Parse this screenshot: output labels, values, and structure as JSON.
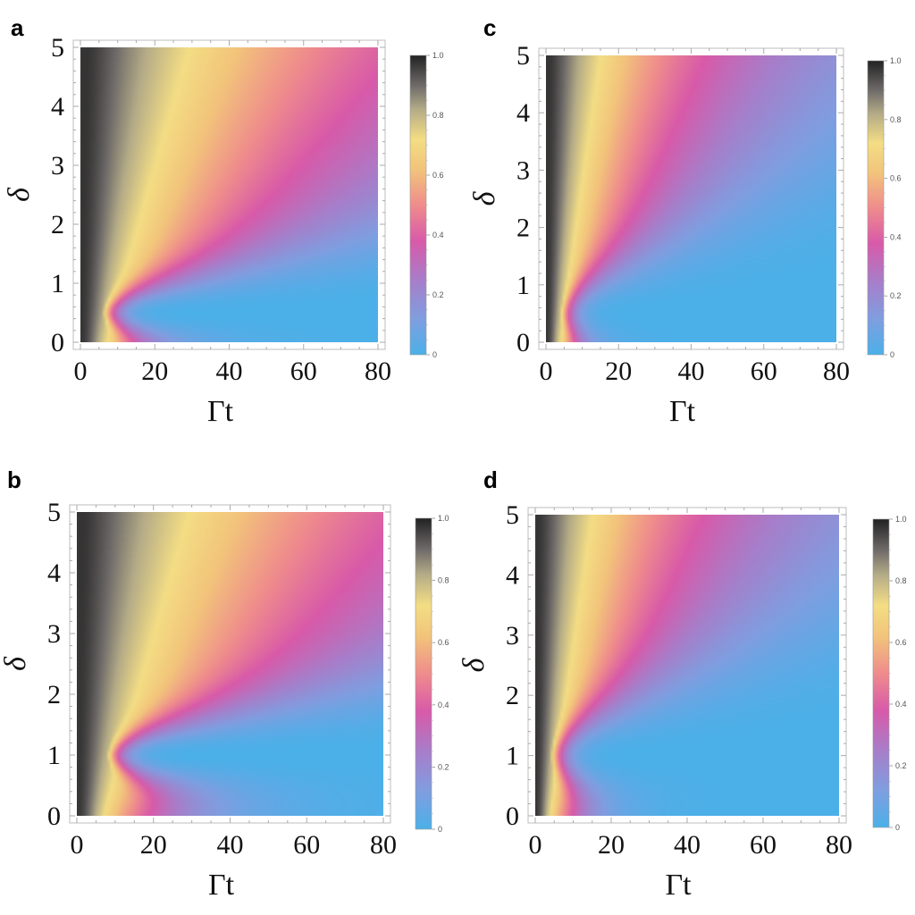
{
  "chart_data": [
    {
      "panel": "a",
      "type": "heatmap",
      "xlabel": "Γt",
      "ylabel": "δ",
      "xlim": [
        0,
        80
      ],
      "ylim": [
        0,
        5
      ],
      "xticks": [
        0,
        20,
        40,
        60,
        80
      ],
      "yticks": [
        0,
        1,
        2,
        3,
        4,
        5
      ],
      "colorbar": {
        "min": 0,
        "max": 1,
        "ticks": [
          "0",
          "0.2",
          "0.4",
          "0.6",
          "0.8",
          "1.0"
        ]
      },
      "valley_center": 0.5,
      "valley_onset_t": 10,
      "dark_region": "small δ, small Γt and large δ",
      "description_of_values": "value near 1 at Γt≈0 and large δ; minimum (≈0) band centered at δ≈0.5 widening for Γt>10"
    },
    {
      "panel": "b",
      "type": "heatmap",
      "xlabel": "Γt",
      "ylabel": "δ",
      "xlim": [
        0,
        80
      ],
      "ylim": [
        0,
        5
      ],
      "xticks": [
        0,
        20,
        40,
        60,
        80
      ],
      "yticks": [
        0,
        1,
        2,
        3,
        4,
        5
      ],
      "colorbar": {
        "min": 0,
        "max": 1,
        "ticks": [
          "0",
          "0.2",
          "0.4",
          "0.6",
          "0.8",
          "1.0"
        ]
      },
      "valley_center": 1.0,
      "valley_onset_t": 12,
      "description_of_values": "minimum (≈0) band centered at δ≈1 widening for Γt>12"
    },
    {
      "panel": "c",
      "type": "heatmap",
      "xlabel": "Γt",
      "ylabel": "δ",
      "xlim": [
        0,
        80
      ],
      "ylim": [
        0,
        5
      ],
      "xticks": [
        0,
        20,
        40,
        60,
        80
      ],
      "yticks": [
        0,
        1,
        2,
        3,
        4,
        5
      ],
      "colorbar": {
        "min": 0,
        "max": 1,
        "ticks": [
          "0",
          "0.2",
          "0.4",
          "0.6",
          "0.8",
          "1.0"
        ]
      },
      "valley_center": 0.5,
      "valley_onset_t": 8,
      "description_of_values": "minimum band centered at δ≈0.5, broad, extends down to δ=0 for Γt>20"
    },
    {
      "panel": "d",
      "type": "heatmap",
      "xlabel": "Γt",
      "ylabel": "δ",
      "xlim": [
        0,
        80
      ],
      "ylim": [
        0,
        5
      ],
      "xticks": [
        0,
        20,
        40,
        60,
        80
      ],
      "yticks": [
        0,
        1,
        2,
        3,
        4,
        5
      ],
      "colorbar": {
        "min": 0,
        "max": 1,
        "ticks": [
          "0",
          "0.2",
          "0.4",
          "0.6",
          "0.8",
          "1.0"
        ]
      },
      "valley_center": 1.0,
      "valley_onset_t": 8,
      "description_of_values": "broad minimum band centered at δ≈1 widening for Γt>8"
    }
  ],
  "colormap": [
    "#4bb0e8",
    "#8f8fd6",
    "#cf58ad",
    "#ef9a86",
    "#f1d27b",
    "#f3dd84",
    "#b6ac86",
    "#6f6b6a",
    "#2a2a2a"
  ],
  "labels": {
    "panel_a": "a",
    "panel_b": "b",
    "panel_c": "c",
    "panel_d": "d"
  }
}
